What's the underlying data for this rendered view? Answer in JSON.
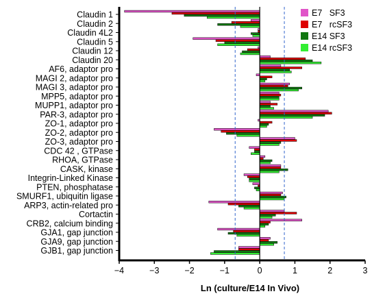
{
  "chart_data": {
    "type": "bar",
    "orientation": "horizontal",
    "title": "",
    "xlabel": "Ln (culture/E14 In Vivo)",
    "ylabel": "",
    "xlim": [
      -4,
      3
    ],
    "xticks": [
      -4,
      -3,
      -2,
      -1,
      0,
      1,
      2,
      3
    ],
    "reference_lines": [
      -0.7,
      0.7
    ],
    "grid": false,
    "legend_position": "top-right",
    "categories": [
      "Claudin 1",
      "Claudin 2",
      "Claudin 4L2",
      "Claudin 5",
      "Claudin 12",
      "Claudin 20",
      "AF6, adaptor pro",
      "MAGI 2, adaptor pro",
      "MAGI 3, adaptor pro",
      "MPP5, adaptor pro",
      "MUPP1, adaptor pro",
      "PAR-3, adaptor pro",
      "ZO-1, adaptor pro",
      "ZO-2, adaptor pro",
      "ZO-3, adaptor pro",
      "CDC 42 , GTPase",
      "RHOA, GTPase",
      "CASK, kinase",
      "Integrin-Linked Kinase",
      "PTEN, phosphatase",
      "SMURF1, ubiquitin ligase",
      "ARP3, actin-related pro",
      "Cortactin",
      "CRB2, calcium binding",
      "GJA1, gap junction",
      "GJA9, gap junction",
      "GJB1, gap junction"
    ],
    "series": [
      {
        "name": "E7   SF3",
        "color": "#e055c8",
        "values": [
          -3.85,
          -0.25,
          -0.05,
          -1.9,
          -0.05,
          0.3,
          0.6,
          -0.1,
          0.85,
          0.55,
          0.3,
          1.95,
          -0.05,
          -1.3,
          1.0,
          -0.3,
          0.15,
          0.6,
          -0.45,
          -0.2,
          0.65,
          -1.45,
          0.7,
          1.2,
          -1.2,
          0.3,
          -0.6
        ]
      },
      {
        "name": "E7   rcSF3",
        "color": "#dd0000",
        "values": [
          -2.5,
          -0.8,
          -0.05,
          -1.25,
          -0.35,
          1.3,
          1.2,
          0.35,
          0.8,
          0.6,
          0.5,
          2.05,
          0.35,
          -1.1,
          1.05,
          -0.15,
          0.1,
          0.6,
          -0.35,
          -0.05,
          0.6,
          -0.9,
          1.05,
          0.3,
          -0.75,
          0.25,
          -0.6
        ]
      },
      {
        "name": "E14 SF3",
        "color": "#117711",
        "values": [
          -2.15,
          -1.2,
          -0.25,
          -1.0,
          -0.5,
          1.5,
          0.85,
          0.2,
          1.2,
          0.55,
          0.3,
          1.85,
          0.25,
          -0.95,
          0.6,
          -0.15,
          0.35,
          0.8,
          -0.3,
          -0.15,
          0.75,
          -0.6,
          0.45,
          0.25,
          -0.9,
          0.5,
          -1.3
        ]
      },
      {
        "name": "E14 rcSF3",
        "color": "#33ee33",
        "values": [
          -1.5,
          -0.55,
          -0.2,
          -1.2,
          -0.55,
          1.75,
          0.9,
          0.15,
          1.1,
          0.55,
          0.4,
          1.5,
          0.2,
          -0.65,
          0.55,
          -0.25,
          0.3,
          0.55,
          -0.3,
          -0.1,
          0.7,
          -0.45,
          0.35,
          0.15,
          -0.65,
          0.4,
          -1.4
        ]
      }
    ]
  }
}
